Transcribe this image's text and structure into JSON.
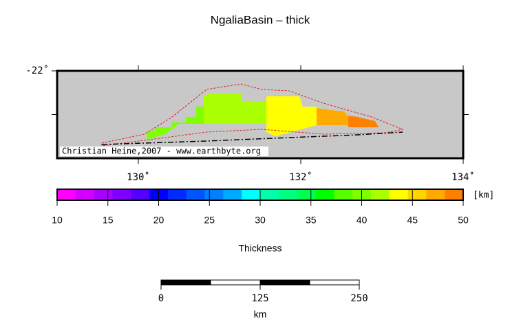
{
  "title": "NgaliaBasin – thick",
  "map": {
    "xlim": [
      129,
      134
    ],
    "xticks": [
      {
        "value": 130,
        "label": "130˚"
      },
      {
        "value": 132,
        "label": "132˚"
      },
      {
        "value": 134,
        "label": "134˚"
      }
    ],
    "yticks": [
      {
        "value": -22,
        "label": "-22˚"
      }
    ],
    "credit": "Christian Heine,2007 - www.earthbyte.org"
  },
  "colorbar": {
    "clim": [
      10,
      50
    ],
    "ticks": [
      10,
      15,
      20,
      25,
      30,
      35,
      40,
      45,
      50
    ],
    "unit": "[km]",
    "label": "Thickness",
    "colors": [
      "#ff00ff",
      "#d400ff",
      "#aa00ff",
      "#7f00ff",
      "#5500ff",
      "#0000ff",
      "#002bff",
      "#0055ff",
      "#0080ff",
      "#00aaff",
      "#00ffff",
      "#00ffaa",
      "#00ff80",
      "#00ff55",
      "#00ff00",
      "#55ff00",
      "#80ff00",
      "#aaff00",
      "#ffff00",
      "#ffd400",
      "#ffaa00",
      "#ff7f00"
    ]
  },
  "scalebar": {
    "xlim": [
      0,
      250
    ],
    "ticks": [
      0,
      125,
      250
    ],
    "unit": "km"
  }
}
